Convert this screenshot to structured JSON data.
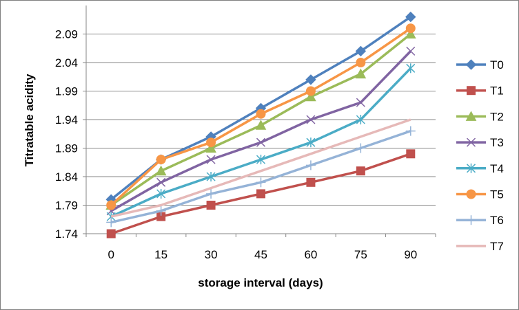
{
  "chart_data": {
    "type": "line",
    "xlabel": "storage interval (days)",
    "ylabel": "Titratable acidity",
    "categories": [
      "0",
      "15",
      "30",
      "45",
      "60",
      "75",
      "90"
    ],
    "yticks": [
      "1.74",
      "1.79",
      "1.84",
      "1.89",
      "1.94",
      "1.99",
      "2.04",
      "2.09"
    ],
    "ylim": [
      1.74,
      2.14
    ],
    "grid": "horizontal",
    "legend_position": "right",
    "series": [
      {
        "name": "T0",
        "color": "#4F81BD",
        "marker": "diamond",
        "values": [
          1.8,
          1.87,
          1.91,
          1.96,
          2.01,
          2.06,
          2.12
        ]
      },
      {
        "name": "T1",
        "color": "#C0504D",
        "marker": "square",
        "values": [
          1.74,
          1.77,
          1.79,
          1.81,
          1.83,
          1.85,
          1.88
        ]
      },
      {
        "name": "T2",
        "color": "#9BBB59",
        "marker": "triangle",
        "values": [
          1.79,
          1.85,
          1.89,
          1.93,
          1.98,
          2.02,
          2.09
        ]
      },
      {
        "name": "T3",
        "color": "#8064A2",
        "marker": "x",
        "values": [
          1.78,
          1.83,
          1.87,
          1.9,
          1.94,
          1.97,
          2.06
        ]
      },
      {
        "name": "T4",
        "color": "#4BACC6",
        "marker": "star",
        "values": [
          1.77,
          1.81,
          1.84,
          1.87,
          1.9,
          1.94,
          2.03
        ]
      },
      {
        "name": "T5",
        "color": "#F79646",
        "marker": "circle",
        "values": [
          1.79,
          1.87,
          1.9,
          1.95,
          1.99,
          2.04,
          2.1
        ]
      },
      {
        "name": "T6",
        "color": "#95B3D7",
        "marker": "plus",
        "values": [
          1.76,
          1.78,
          1.81,
          1.83,
          1.86,
          1.89,
          1.92
        ]
      },
      {
        "name": "T7",
        "color": "#E6B9B8",
        "marker": "none",
        "values": [
          1.77,
          1.79,
          1.82,
          1.85,
          1.88,
          1.91,
          1.94
        ]
      }
    ]
  }
}
